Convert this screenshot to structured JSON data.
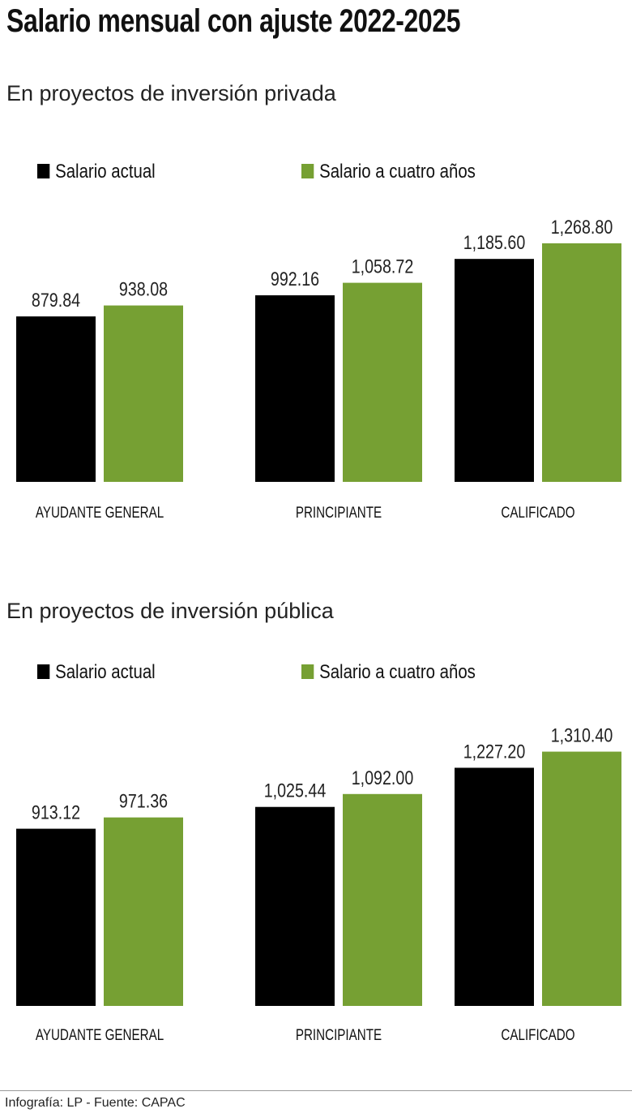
{
  "title": "Salario mensual con ajuste 2022-2025",
  "colors": {
    "actual": "#000000",
    "cuatro": "#76a033"
  },
  "chart_data": [
    {
      "type": "bar",
      "subtitle": "En proyectos de inversión privada",
      "categories": [
        "AYUDANTE GENERAL",
        "PRINCIPIANTE",
        "CALIFICADO"
      ],
      "series": [
        {
          "name": "Salario actual",
          "values": [
            879.84,
            992.16,
            1185.6
          ],
          "labels": [
            "879.84",
            "992.16",
            "1,185.60"
          ]
        },
        {
          "name": "Salario a cuatro años",
          "values": [
            938.08,
            1058.72,
            1268.8
          ],
          "labels": [
            "938.08",
            "1,058.72",
            "1,268.80"
          ]
        }
      ],
      "legend": "top-left",
      "grid": false
    },
    {
      "type": "bar",
      "subtitle": "En proyectos de inversión pública",
      "categories": [
        "AYUDANTE GENERAL",
        "PRINCIPIANTE",
        "CALIFICADO"
      ],
      "series": [
        {
          "name": "Salario actual",
          "values": [
            913.12,
            1025.44,
            1227.2
          ],
          "labels": [
            "913.12",
            "1,025.44",
            "1,227.20"
          ]
        },
        {
          "name": "Salario a cuatro años",
          "values": [
            971.36,
            1092.0,
            1310.4
          ],
          "labels": [
            "971.36",
            "1,092.00",
            "1,310.40"
          ]
        }
      ],
      "legend": "top-left",
      "grid": false
    }
  ],
  "footer": "Infografía: LP - Fuente: CAPAC"
}
